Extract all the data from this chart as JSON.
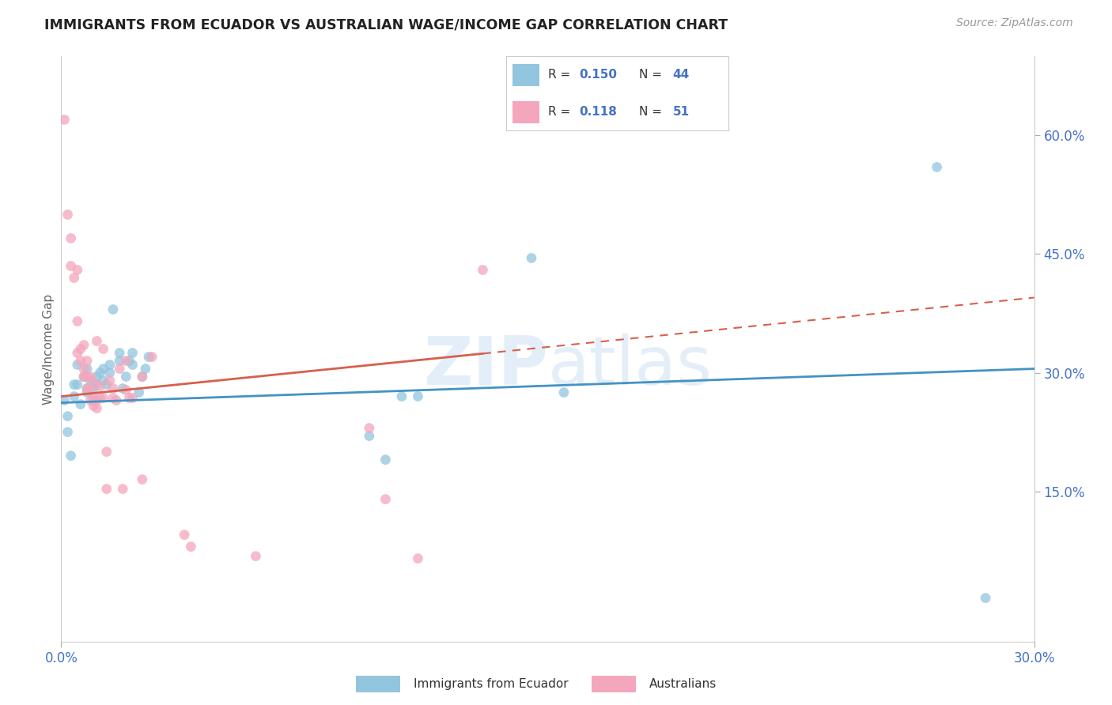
{
  "title": "IMMIGRANTS FROM ECUADOR VS AUSTRALIAN WAGE/INCOME GAP CORRELATION CHART",
  "source": "Source: ZipAtlas.com",
  "ylabel": "Wage/Income Gap",
  "right_yticks": [
    0.15,
    0.3,
    0.45,
    0.6
  ],
  "right_yticklabels": [
    "15.0%",
    "30.0%",
    "45.0%",
    "60.0%"
  ],
  "xmin": 0.0,
  "xmax": 0.3,
  "ymin": -0.04,
  "ymax": 0.7,
  "watermark": "ZIPatlas",
  "blue_color": "#92c5de",
  "pink_color": "#f4a6bc",
  "blue_line_color": "#4393c3",
  "pink_line_color": "#d6604d",
  "blue_scatter_x": [
    0.001,
    0.002,
    0.002,
    0.003,
    0.004,
    0.004,
    0.005,
    0.005,
    0.006,
    0.007,
    0.008,
    0.008,
    0.008,
    0.009,
    0.01,
    0.01,
    0.011,
    0.011,
    0.012,
    0.013,
    0.013,
    0.014,
    0.015,
    0.015,
    0.016,
    0.018,
    0.018,
    0.019,
    0.02,
    0.021,
    0.022,
    0.022,
    0.024,
    0.025,
    0.026,
    0.027,
    0.095,
    0.1,
    0.105,
    0.11,
    0.145,
    0.155,
    0.27,
    0.285
  ],
  "blue_scatter_y": [
    0.265,
    0.245,
    0.225,
    0.195,
    0.27,
    0.285,
    0.31,
    0.285,
    0.26,
    0.295,
    0.305,
    0.275,
    0.28,
    0.29,
    0.28,
    0.265,
    0.285,
    0.295,
    0.3,
    0.29,
    0.305,
    0.285,
    0.31,
    0.3,
    0.38,
    0.315,
    0.325,
    0.28,
    0.295,
    0.315,
    0.31,
    0.325,
    0.275,
    0.295,
    0.305,
    0.32,
    0.22,
    0.19,
    0.27,
    0.27,
    0.445,
    0.275,
    0.56,
    0.015
  ],
  "pink_scatter_x": [
    0.001,
    0.002,
    0.003,
    0.003,
    0.004,
    0.005,
    0.005,
    0.005,
    0.006,
    0.006,
    0.007,
    0.007,
    0.007,
    0.008,
    0.008,
    0.008,
    0.009,
    0.009,
    0.009,
    0.01,
    0.01,
    0.01,
    0.011,
    0.011,
    0.011,
    0.012,
    0.012,
    0.013,
    0.013,
    0.014,
    0.014,
    0.015,
    0.016,
    0.016,
    0.017,
    0.018,
    0.019,
    0.02,
    0.02,
    0.021,
    0.022,
    0.025,
    0.025,
    0.028,
    0.038,
    0.04,
    0.06,
    0.095,
    0.1,
    0.11,
    0.13
  ],
  "pink_scatter_y": [
    0.62,
    0.5,
    0.47,
    0.435,
    0.42,
    0.43,
    0.365,
    0.325,
    0.33,
    0.315,
    0.335,
    0.305,
    0.295,
    0.315,
    0.295,
    0.28,
    0.295,
    0.278,
    0.265,
    0.288,
    0.268,
    0.258,
    0.34,
    0.265,
    0.255,
    0.283,
    0.268,
    0.33,
    0.268,
    0.2,
    0.153,
    0.29,
    0.28,
    0.268,
    0.265,
    0.305,
    0.153,
    0.278,
    0.315,
    0.268,
    0.268,
    0.165,
    0.295,
    0.32,
    0.095,
    0.08,
    0.068,
    0.23,
    0.14,
    0.065,
    0.43
  ],
  "blue_trendline_x": [
    0.0,
    0.3
  ],
  "blue_trendline_y": [
    0.262,
    0.305
  ],
  "pink_trendline_x": [
    0.0,
    0.3
  ],
  "pink_trendline_y": [
    0.27,
    0.395
  ]
}
